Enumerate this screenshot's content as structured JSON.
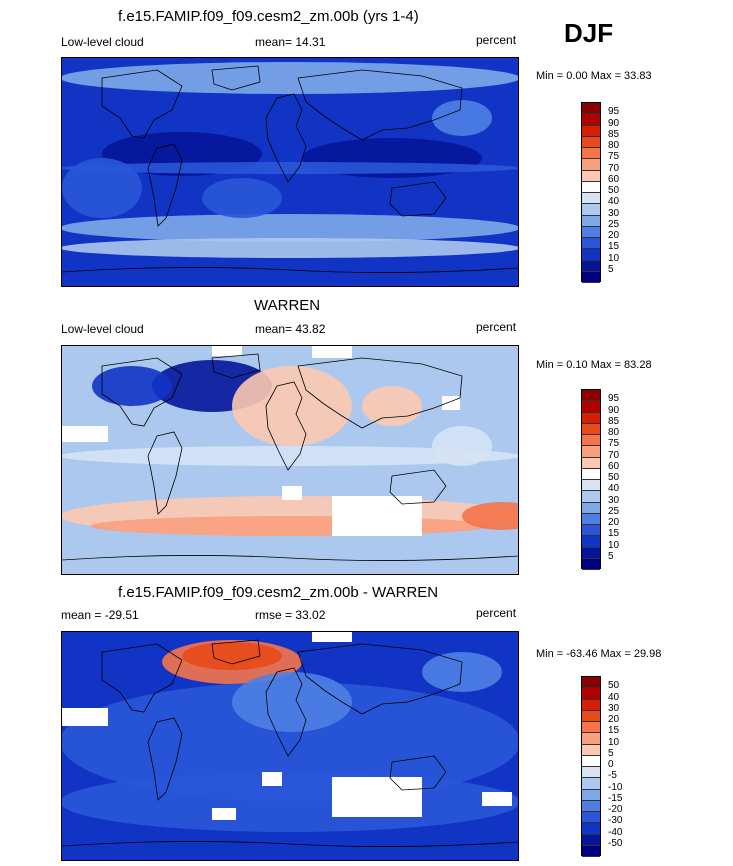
{
  "season": "DJF",
  "panels": [
    {
      "title": "f.e15.FAMIP.f09_f09.cesm2_zm.00b (yrs 1-4)",
      "left_label": "Low-level cloud",
      "center_label": "mean=  14.31",
      "units": "percent",
      "min_max": "Min =    0.00 Max =   33.83",
      "levels": [
        "95",
        "90",
        "85",
        "80",
        "75",
        "70",
        "60",
        "50",
        "40",
        "30",
        "25",
        "20",
        "15",
        "10",
        "5"
      ]
    },
    {
      "title": "WARREN",
      "left_label": "Low-level cloud",
      "center_label": "mean=  43.82",
      "units": "percent",
      "min_max": "Min =   0.10 Max =  83.28",
      "levels": [
        "95",
        "90",
        "85",
        "80",
        "75",
        "70",
        "60",
        "50",
        "40",
        "30",
        "25",
        "20",
        "15",
        "10",
        "5"
      ]
    },
    {
      "title": "f.e15.FAMIP.f09_f09.cesm2_zm.00b - WARREN",
      "left_label": "mean = -29.51",
      "center_label": "rmse =  33.02",
      "units": "percent",
      "min_max": "Min = -63.46 Max =  29.98",
      "levels": [
        "50",
        "40",
        "30",
        "20",
        "15",
        "10",
        "5",
        "0",
        "-5",
        "-10",
        "-15",
        "-20",
        "-30",
        "-40",
        "-50"
      ]
    }
  ],
  "colors": {
    "scale": [
      "#8b0000",
      "#b00000",
      "#d42000",
      "#e84a1a",
      "#f5744a",
      "#f9a07e",
      "#fcc9b0",
      "#ffffff",
      "#d5e3f5",
      "#adc8ee",
      "#7ea8e8",
      "#4f7fe4",
      "#2a57d8",
      "#1234c4",
      "#05159a",
      "#000080"
    ]
  }
}
